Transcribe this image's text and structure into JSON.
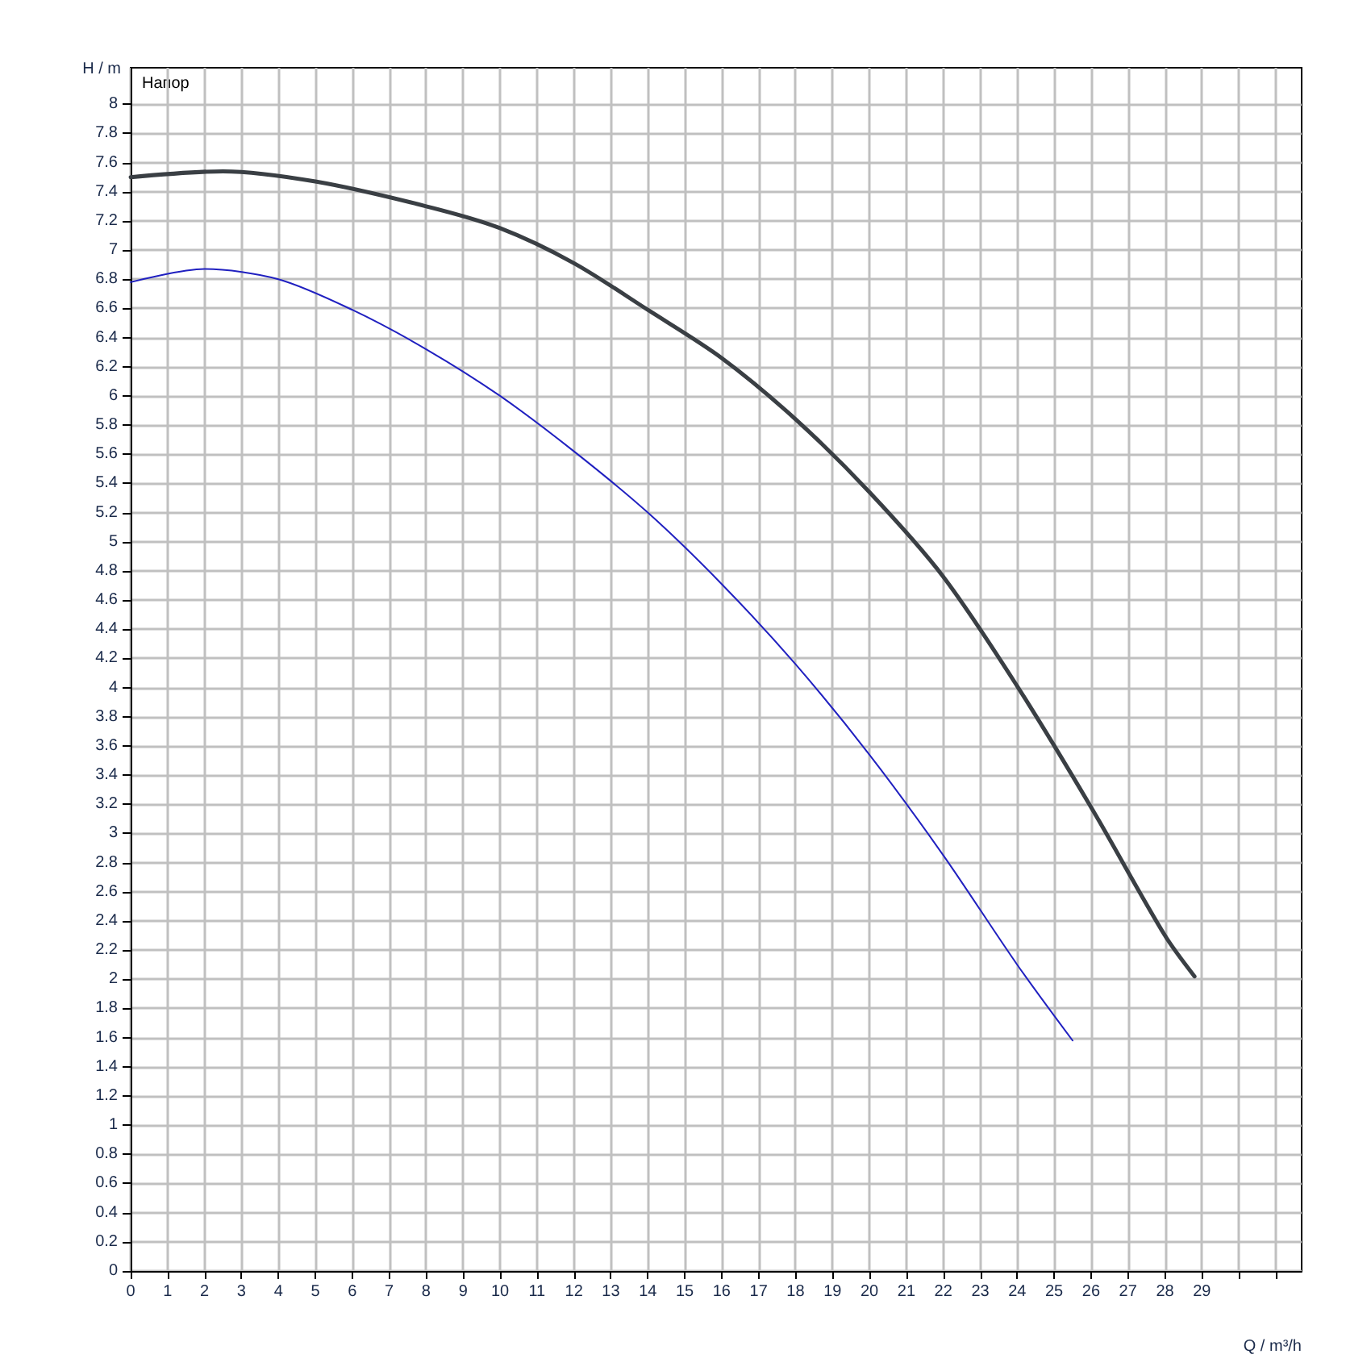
{
  "chart_data": {
    "type": "line",
    "xlabel": "Q / m³/h",
    "ylabel": "H / m",
    "annotations": [
      "Напор"
    ],
    "xlim": [
      0,
      31.7
    ],
    "ylim": [
      0,
      8.25
    ],
    "xticks": [
      0,
      1,
      2,
      3,
      4,
      5,
      6,
      7,
      8,
      9,
      10,
      11,
      12,
      13,
      14,
      15,
      16,
      17,
      18,
      19,
      20,
      21,
      22,
      23,
      24,
      25,
      26,
      27,
      28,
      29,
      {
        "value": 30,
        "label": null
      },
      {
        "value": 31,
        "label": null
      }
    ],
    "yticks": [
      0,
      0.2,
      0.4,
      0.6,
      0.8,
      1,
      1.2,
      1.4,
      1.6,
      1.8,
      2,
      2.2,
      2.4,
      2.6,
      2.8,
      3,
      3.2,
      3.4,
      3.6,
      3.8,
      4,
      4.2,
      4.4,
      4.6,
      4.8,
      5,
      5.2,
      5.4,
      5.6,
      5.8,
      6,
      6.2,
      6.4,
      6.6,
      6.8,
      7,
      7.2,
      7.4,
      7.6,
      7.8,
      8
    ],
    "grid": true,
    "marker": "none",
    "line_style": "solid",
    "series": [
      {
        "color": "#3a3f44",
        "x": [
          0,
          2.5,
          5,
          8,
          10,
          12,
          14,
          16,
          18,
          20,
          22,
          24,
          26,
          28,
          28.8
        ],
        "values": [
          7.5,
          7.54,
          7.47,
          7.3,
          7.15,
          6.91,
          6.59,
          6.26,
          5.84,
          5.34,
          4.76,
          4.01,
          3.18,
          2.3,
          2.02
        ]
      },
      {
        "color": "#2020c0",
        "x": [
          0,
          2,
          4,
          6,
          8,
          10,
          12,
          14,
          16,
          18,
          20,
          22,
          24,
          25.5
        ],
        "values": [
          6.78,
          6.87,
          6.8,
          6.59,
          6.32,
          6.0,
          5.62,
          5.2,
          4.71,
          4.16,
          3.54,
          2.85,
          2.1,
          1.58
        ]
      }
    ]
  }
}
